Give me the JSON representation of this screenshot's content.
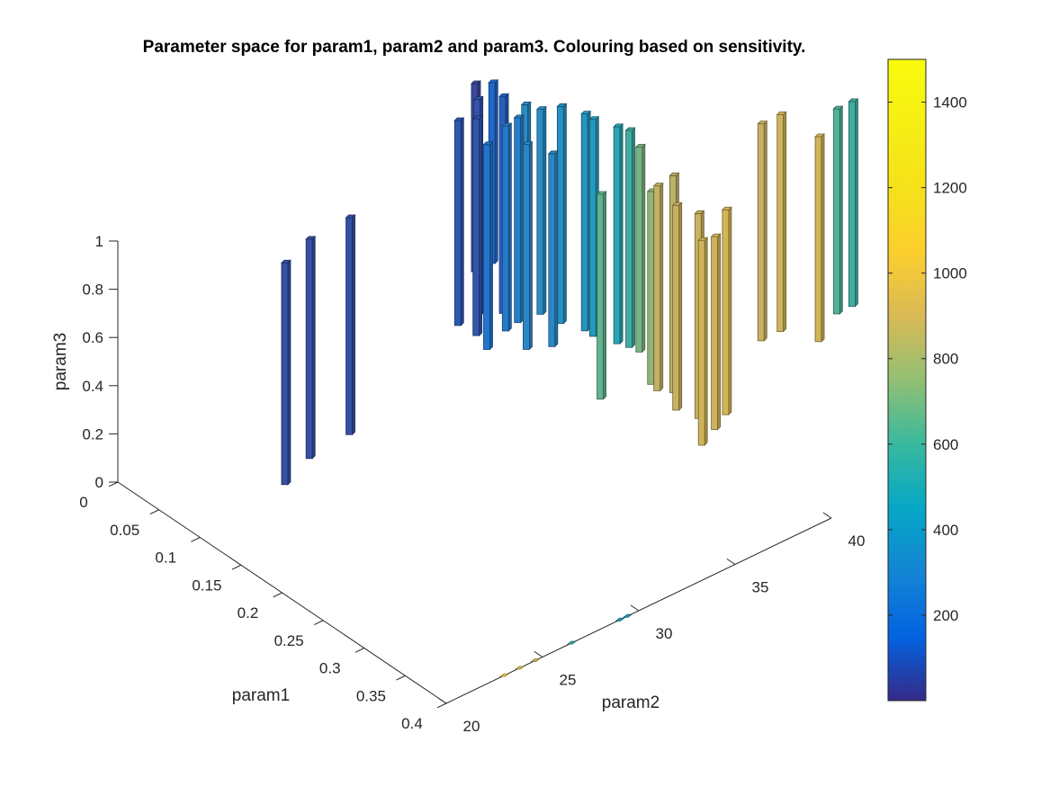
{
  "chart_data": {
    "type": "3d-bar",
    "title": "Parameter space for param1, param2 and param3. Colouring based on sensitivity.",
    "xlabel": "param1",
    "ylabel": "param2",
    "zlabel": "param3",
    "xlim": [
      0,
      0.4
    ],
    "ylim": [
      20,
      40
    ],
    "zlim": [
      0,
      1
    ],
    "xticks": [
      "0",
      "0.05",
      "0.1",
      "0.15",
      "0.2",
      "0.25",
      "0.3",
      "0.35",
      "0.4"
    ],
    "yticks": [
      "20",
      "25",
      "30",
      "35",
      "40"
    ],
    "zticks": [
      "0",
      "0.2",
      "0.4",
      "0.6",
      "0.8",
      "1"
    ],
    "colorbar": {
      "colormap": "parula",
      "range": [
        0,
        1500
      ],
      "ticks": [
        "200",
        "400",
        "600",
        "800",
        "1000",
        "1200",
        "1400"
      ]
    },
    "bars": [
      {
        "param1": 0.1,
        "param2": 24.4,
        "z_low": 0.05,
        "z_high": 0.97,
        "sensitivity": 60
      },
      {
        "param1": 0.09,
        "param2": 26.1,
        "z_low": 0.07,
        "z_high": 0.98,
        "sensitivity": 60
      },
      {
        "param1": 0.08,
        "param2": 28.6,
        "z_low": 0.05,
        "z_high": 0.95,
        "sensitivity": 60
      },
      {
        "param1": 0.04,
        "param2": 36.9,
        "z_low": 0.05,
        "z_high": 0.95,
        "sensitivity": 80
      },
      {
        "param1": 0.02,
        "param2": 36.8,
        "z_low": 0.05,
        "z_high": 0.9,
        "sensitivity": 90
      },
      {
        "param1": 0.02,
        "param2": 37.8,
        "z_low": 0.05,
        "z_high": 0.95,
        "sensitivity": 70
      },
      {
        "param1": 0.01,
        "param2": 38.1,
        "z_low": 0.2,
        "z_high": 0.98,
        "sensitivity": 40
      },
      {
        "param1": 0.06,
        "param2": 36.6,
        "z_low": 0.05,
        "z_high": 0.9,
        "sensitivity": 200
      },
      {
        "param1": 0.03,
        "param2": 38.7,
        "z_low": 0.05,
        "z_high": 0.95,
        "sensitivity": 110
      },
      {
        "param1": 0.01,
        "param2": 39.0,
        "z_low": 0.2,
        "z_high": 0.95,
        "sensitivity": 140
      },
      {
        "param1": 0.05,
        "param2": 38.0,
        "z_low": 0.05,
        "z_high": 0.9,
        "sensitivity": 230
      },
      {
        "param1": 0.06,
        "param2": 38.2,
        "z_low": 0.1,
        "z_high": 0.95,
        "sensitivity": 260
      },
      {
        "param1": 0.08,
        "param2": 37.8,
        "z_low": 0.05,
        "z_high": 0.9,
        "sensitivity": 300
      },
      {
        "param1": 0.05,
        "param2": 39.0,
        "z_low": 0.1,
        "z_high": 0.95,
        "sensitivity": 320
      },
      {
        "param1": 0.09,
        "param2": 38.7,
        "z_low": 0.05,
        "z_high": 0.85,
        "sensitivity": 300
      },
      {
        "param1": 0.05,
        "param2": 39.8,
        "z_low": 0.05,
        "z_high": 0.9,
        "sensitivity": 330
      },
      {
        "param1": 0.07,
        "param2": 40.0,
        "z_low": 0.05,
        "z_high": 0.95,
        "sensitivity": 350
      },
      {
        "param1": 0.09,
        "param2": 40.4,
        "z_low": 0.05,
        "z_high": 0.95,
        "sensitivity": 380
      },
      {
        "param1": 0.1,
        "param2": 40.4,
        "z_low": 0.05,
        "z_high": 0.95,
        "sensitivity": 400
      },
      {
        "param1": 0.17,
        "param2": 37.8,
        "z_low": 0.05,
        "z_high": 0.9,
        "sensitivity": 650
      },
      {
        "param1": 0.12,
        "param2": 40.8,
        "z_low": 0.05,
        "z_high": 0.95,
        "sensitivity": 480
      },
      {
        "param1": 0.13,
        "param2": 41.0,
        "z_low": 0.05,
        "z_high": 0.95,
        "sensitivity": 560
      },
      {
        "param1": 0.14,
        "param2": 41.1,
        "z_low": 0.05,
        "z_high": 0.9,
        "sensitivity": 700
      },
      {
        "param1": 0.18,
        "param2": 40.0,
        "z_low": 0.05,
        "z_high": 0.85,
        "sensitivity": 750
      },
      {
        "param1": 0.19,
        "param2": 39.9,
        "z_low": 0.05,
        "z_high": 0.9,
        "sensitivity": 880
      },
      {
        "param1": 0.2,
        "param2": 40.3,
        "z_low": 0.05,
        "z_high": 0.95,
        "sensitivity": 860
      },
      {
        "param1": 0.22,
        "param2": 39.6,
        "z_low": 0.05,
        "z_high": 0.9,
        "sensitivity": 900
      },
      {
        "param1": 0.24,
        "param2": 39.9,
        "z_low": 0.05,
        "z_high": 0.9,
        "sensitivity": 900
      },
      {
        "param1": 0.27,
        "param2": 38.8,
        "z_low": 0.05,
        "z_high": 0.9,
        "sensitivity": 930
      },
      {
        "param1": 0.26,
        "param2": 39.9,
        "z_low": 0.05,
        "z_high": 0.85,
        "sensitivity": 920
      },
      {
        "param1": 0.25,
        "param2": 40.9,
        "z_low": 0.05,
        "z_high": 0.9,
        "sensitivity": 950
      },
      {
        "param1": 0.19,
        "param2": 45.3,
        "z_low": 0.05,
        "z_high": 0.95,
        "sensitivity": 900
      },
      {
        "param1": 0.19,
        "param2": 46.3,
        "z_low": 0.05,
        "z_high": 0.95,
        "sensitivity": 930
      },
      {
        "param1": 0.22,
        "param2": 47.0,
        "z_low": 0.05,
        "z_high": 0.9,
        "sensitivity": 930
      },
      {
        "param1": 0.2,
        "param2": 48.8,
        "z_low": 0.05,
        "z_high": 0.9,
        "sensitivity": 620
      },
      {
        "param1": 0.2,
        "param2": 49.6,
        "z_low": 0.05,
        "z_high": 0.9,
        "sensitivity": 580
      }
    ],
    "points": [
      {
        "param1": 0.4,
        "param2": 23.0,
        "sensitivity": 1100
      },
      {
        "param1": 0.4,
        "param2": 23.8,
        "sensitivity": 1000
      },
      {
        "param1": 0.4,
        "param2": 24.6,
        "sensitivity": 900
      },
      {
        "param1": 0.4,
        "param2": 26.5,
        "sensitivity": 550
      },
      {
        "param1": 0.4,
        "param2": 29.0,
        "sensitivity": 400
      },
      {
        "param1": 0.4,
        "param2": 29.4,
        "sensitivity": 420
      }
    ]
  }
}
